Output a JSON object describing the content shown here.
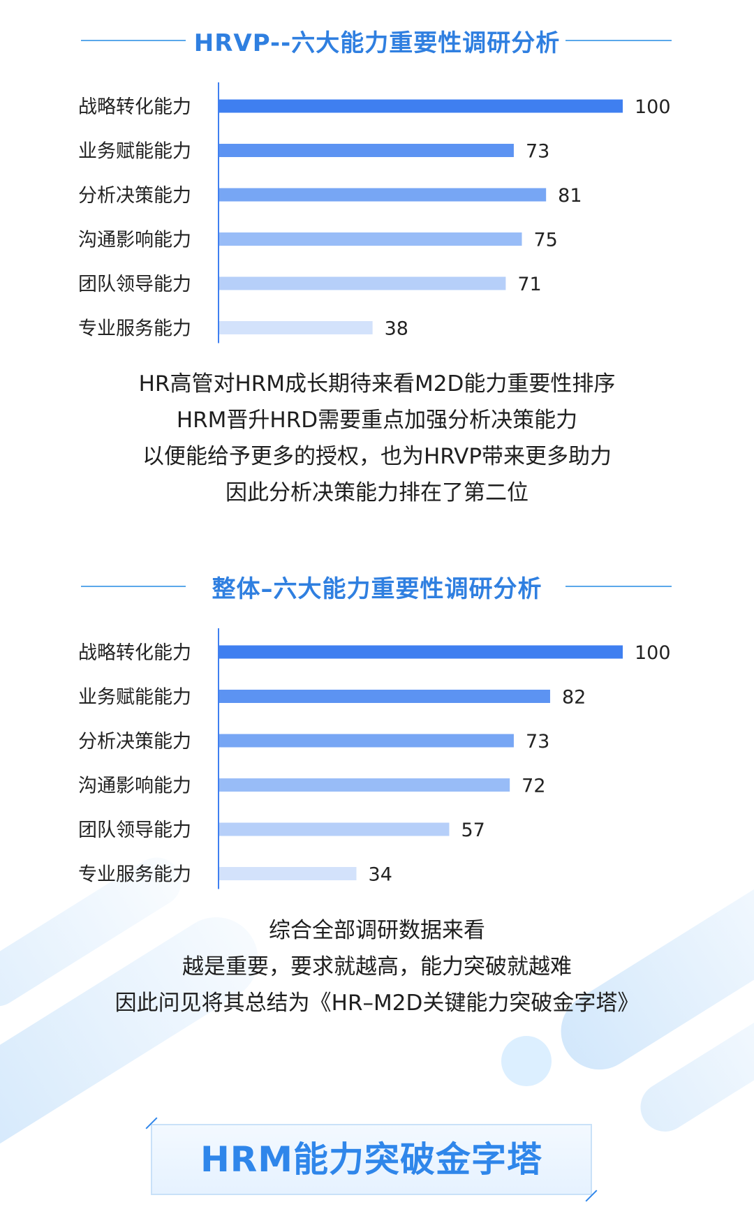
{
  "section1": {
    "title": "HRVP--六大能力重要性调研分析",
    "caption_lines": [
      "HR高管对HRM成长期待来看M2D能力重要性排序",
      "HRM晋升HRD需要重点加强分析决策能力",
      "以便能给予更多的授权，也为HRVP带来更多助力",
      "因此分析决策能力排在了第二位"
    ]
  },
  "section2": {
    "title": "整体–六大能力重要性调研分析",
    "caption_lines": [
      "综合全部调研数据来看",
      "越是重要，要求就越高，能力突破就越难",
      "因此问见将其总结为《HR–M2D关键能力突破金字塔》"
    ]
  },
  "banner": {
    "title": "HRM能力突破金字塔"
  },
  "colors": {
    "accent": "#2f7fe0",
    "bar_shades": [
      "#3f7ff0",
      "#5c93f2",
      "#77a6f4",
      "#98bcf7",
      "#b6cff9",
      "#d3e2fb"
    ]
  },
  "chart_data": [
    {
      "type": "bar",
      "orientation": "horizontal",
      "title": "HRVP--六大能力重要性调研分析",
      "categories": [
        "战略转化能力",
        "业务赋能能力",
        "分析决策能力",
        "沟通影响能力",
        "团队领导能力",
        "专业服务能力"
      ],
      "values": [
        100,
        73,
        81,
        75,
        71,
        38
      ],
      "xlim": [
        0,
        100
      ],
      "grid": false,
      "legend": "none"
    },
    {
      "type": "bar",
      "orientation": "horizontal",
      "title": "整体–六大能力重要性调研分析",
      "categories": [
        "战略转化能力",
        "业务赋能能力",
        "分析决策能力",
        "沟通影响能力",
        "团队领导能力",
        "专业服务能力"
      ],
      "values": [
        100,
        82,
        73,
        72,
        57,
        34
      ],
      "xlim": [
        0,
        100
      ],
      "grid": false,
      "legend": "none"
    }
  ]
}
